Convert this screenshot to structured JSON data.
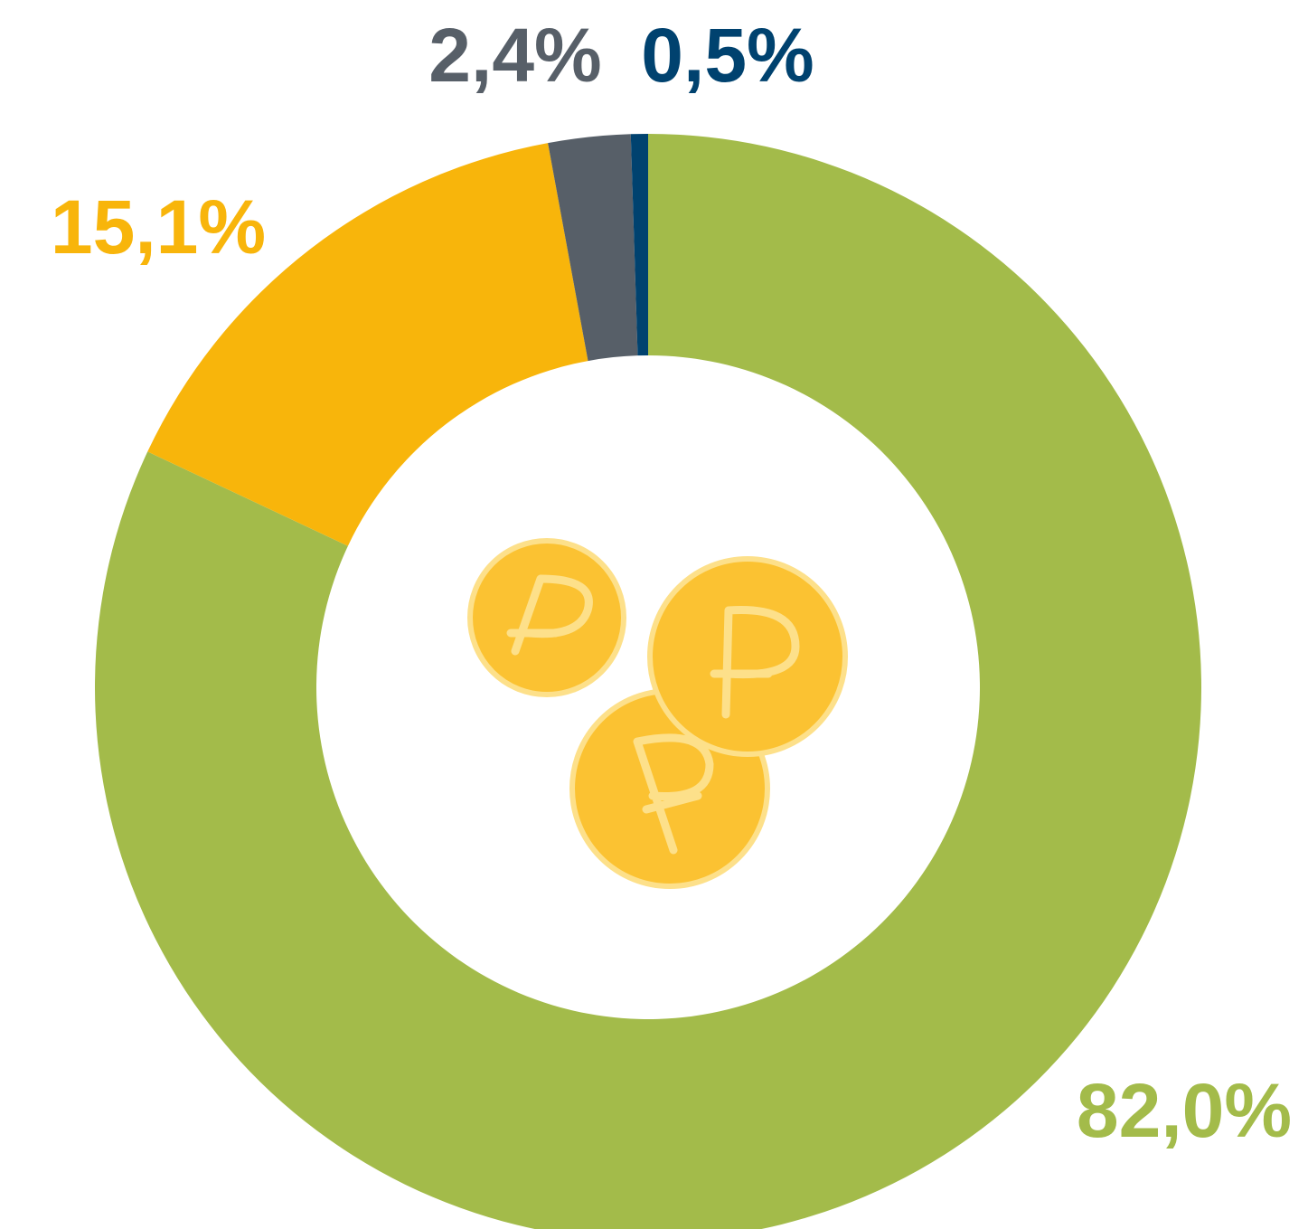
{
  "chart_data": {
    "type": "donut",
    "values": [
      82.0,
      15.1,
      2.4,
      0.5
    ],
    "value_labels": [
      "82,0%",
      "15,1%",
      "2,4%",
      "0,5%"
    ],
    "colors": [
      "#a3bb4a",
      "#f8b50b",
      "#575f68",
      "#00426f"
    ]
  }
}
